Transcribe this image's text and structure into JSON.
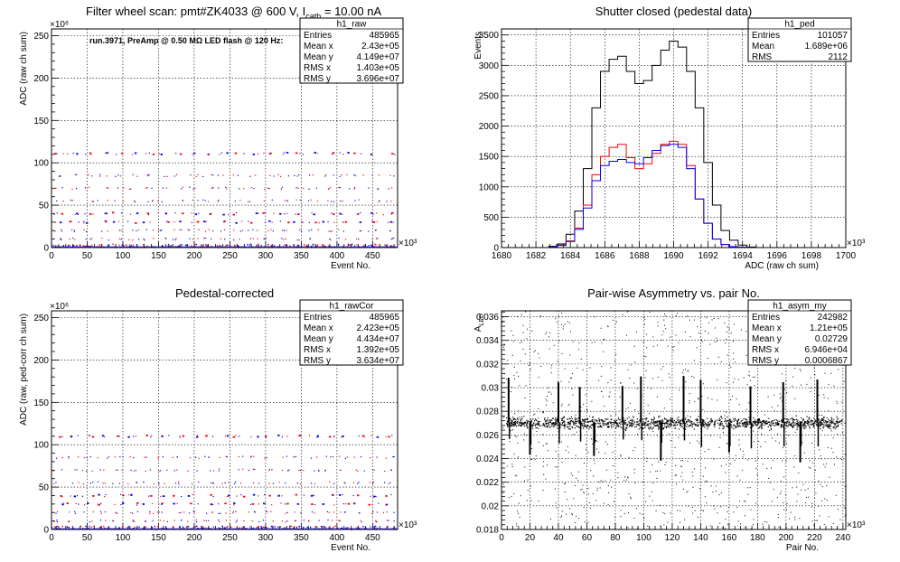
{
  "chart_data": [
    {
      "type": "scatter",
      "title": "Filter wheel scan: pmt#ZK4033 @   600 V, I",
      "title_sub": "cath",
      "title_tail": " = 10.00 nA",
      "annotation": "run.3971, PreAmp @ 0.50 MΩ LED flash @  120 Hz:",
      "xlabel": "Event No.",
      "ylabel": "ADC (raw ch sum)",
      "x_exponent": "×10³",
      "y_exponent": "×10⁶",
      "xlim": [
        0,
        485
      ],
      "ylim": [
        0,
        258
      ],
      "xticks": [
        0,
        50,
        100,
        150,
        200,
        250,
        300,
        350,
        400,
        450
      ],
      "yticks": [
        0,
        50,
        100,
        150,
        200,
        250
      ],
      "grid": true,
      "levels": [
        2,
        10,
        20,
        30,
        40,
        55,
        70,
        85,
        111
      ],
      "stats": {
        "name": "h1_raw",
        "rows": [
          {
            "label": "Entries",
            "value": "485965"
          },
          {
            "label": "Mean x",
            "value": "2.43e+05"
          },
          {
            "label": "Mean y",
            "value": "4.149e+07"
          },
          {
            "label": "RMS x",
            "value": "1.403e+05"
          },
          {
            "label": "RMS y",
            "value": "3.696e+07"
          }
        ]
      }
    },
    {
      "type": "line",
      "title": "Shutter closed (pedestal data)",
      "xlabel": "ADC (raw ch sum)",
      "ylabel": "Events",
      "x_exponent": "×10³",
      "xlim": [
        1680,
        1700
      ],
      "ylim": [
        0,
        3600
      ],
      "xticks": [
        1680,
        1682,
        1684,
        1686,
        1688,
        1690,
        1692,
        1694,
        1696,
        1698,
        1700
      ],
      "yticks": [
        0,
        500,
        1000,
        1500,
        2000,
        2500,
        3000,
        3500
      ],
      "grid": true,
      "series": [
        {
          "color": "#000000",
          "x": [
            1683,
            1683.5,
            1684,
            1684.5,
            1685,
            1685.5,
            1686,
            1686.5,
            1687,
            1687.5,
            1688,
            1688.5,
            1689,
            1689.5,
            1690,
            1690.5,
            1691,
            1691.5,
            1692,
            1692.5,
            1693,
            1693.5,
            1694,
            1694.5
          ],
          "y": [
            20,
            60,
            220,
            600,
            1300,
            2300,
            2900,
            3100,
            3150,
            2900,
            2700,
            2750,
            3000,
            3250,
            3400,
            3300,
            2900,
            2300,
            1400,
            700,
            280,
            120,
            40,
            10
          ]
        },
        {
          "color": "#ff0000",
          "x": [
            1683,
            1683.5,
            1684,
            1684.5,
            1685,
            1685.5,
            1686,
            1686.5,
            1687,
            1687.5,
            1688,
            1688.5,
            1689,
            1689.5,
            1690,
            1690.5,
            1691,
            1691.5,
            1692,
            1692.5,
            1693,
            1693.5,
            1694
          ],
          "y": [
            10,
            40,
            110,
            320,
            700,
            1200,
            1500,
            1650,
            1700,
            1480,
            1300,
            1380,
            1550,
            1700,
            1750,
            1700,
            1350,
            800,
            400,
            140,
            50,
            15,
            5
          ]
        },
        {
          "color": "#0000ff",
          "x": [
            1683,
            1683.5,
            1684,
            1684.5,
            1685,
            1685.5,
            1686,
            1686.5,
            1687,
            1687.5,
            1688,
            1688.5,
            1689,
            1689.5,
            1690,
            1690.5,
            1691,
            1691.5,
            1692,
            1692.5,
            1693,
            1693.5,
            1694
          ],
          "y": [
            10,
            35,
            100,
            300,
            650,
            1100,
            1350,
            1420,
            1450,
            1400,
            1380,
            1480,
            1600,
            1680,
            1700,
            1650,
            1300,
            800,
            400,
            140,
            50,
            15,
            5
          ]
        }
      ],
      "stats": {
        "name": "h1_ped",
        "rows": [
          {
            "label": "Entries",
            "value": "101057"
          },
          {
            "label": "Mean",
            "value": "1.689e+06"
          },
          {
            "label": "RMS",
            "value": "2112"
          }
        ]
      }
    },
    {
      "type": "scatter",
      "title": "Pedestal-corrected",
      "xlabel": "Event No.",
      "ylabel": "ADC (raw, ped-corr ch sum)",
      "x_exponent": "×10³",
      "y_exponent": "×10⁶",
      "xlim": [
        0,
        485
      ],
      "ylim": [
        0,
        258
      ],
      "xticks": [
        0,
        50,
        100,
        150,
        200,
        250,
        300,
        350,
        400,
        450
      ],
      "yticks": [
        0,
        50,
        100,
        150,
        200,
        250
      ],
      "grid": true,
      "levels": [
        2,
        10,
        20,
        30,
        40,
        55,
        70,
        85,
        110
      ],
      "stats": {
        "name": "h1_rawCor",
        "rows": [
          {
            "label": "Entries",
            "value": "485965"
          },
          {
            "label": "Mean x",
            "value": "2.423e+05"
          },
          {
            "label": "Mean y",
            "value": "4.434e+07"
          },
          {
            "label": "RMS x",
            "value": "1.392e+05"
          },
          {
            "label": "RMS y",
            "value": "3.634e+07"
          }
        ]
      }
    },
    {
      "type": "scatter",
      "title": "Pair-wise Asymmetry vs. pair No.",
      "xlabel": "Pair No.",
      "ylabel": "A",
      "ylabel_sub": "LED",
      "x_exponent": "×10³",
      "xlim": [
        0,
        242
      ],
      "ylim": [
        0.018,
        0.0365
      ],
      "xticks": [
        0,
        20,
        40,
        60,
        80,
        100,
        120,
        140,
        160,
        180,
        200,
        220,
        240
      ],
      "yticks": [
        0.018,
        0.02,
        0.022,
        0.024,
        0.026,
        0.028,
        0.03,
        0.032,
        0.034,
        0.036
      ],
      "grid": true,
      "band_center": 0.02705,
      "spike_pairs": [
        5,
        20,
        40,
        55,
        65,
        85,
        98,
        112,
        128,
        140,
        160,
        175,
        198,
        210,
        222
      ],
      "stats": {
        "name": "h1_asym_my",
        "rows": [
          {
            "label": "Entries",
            "value": "242982"
          },
          {
            "label": "Mean x",
            "value": "1.21e+05"
          },
          {
            "label": "Mean y",
            "value": "0.02729"
          },
          {
            "label": "RMS x",
            "value": "6.946e+04"
          },
          {
            "label": "RMS y",
            "value": "0.0006867"
          }
        ]
      }
    }
  ]
}
